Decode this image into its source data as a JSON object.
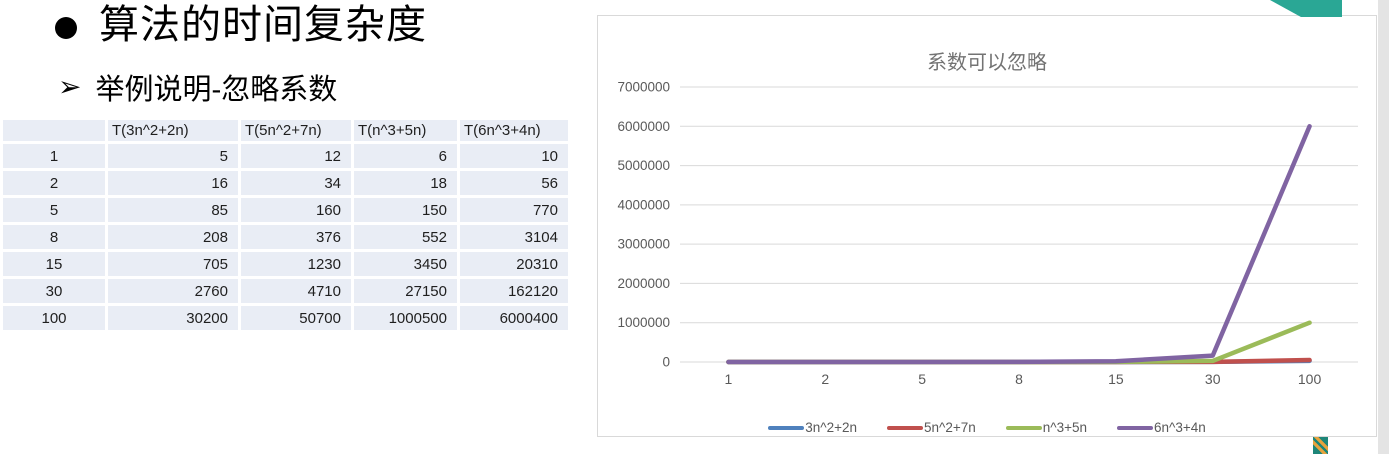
{
  "slide": {
    "bullet_icon": "●",
    "title": "算法的时间复杂度",
    "arrow_icon": "➢",
    "subtitle": "举例说明-忽略系数"
  },
  "table": {
    "headers": [
      "",
      "T(3n^2+2n)",
      "T(5n^2+7n)",
      "T(n^3+5n)",
      "T(6n^3+4n)"
    ],
    "rows": [
      [
        "1",
        "5",
        "12",
        "6",
        "10"
      ],
      [
        "2",
        "16",
        "34",
        "18",
        "56"
      ],
      [
        "5",
        "85",
        "160",
        "150",
        "770"
      ],
      [
        "8",
        "208",
        "376",
        "552",
        "3104"
      ],
      [
        "15",
        "705",
        "1230",
        "3450",
        "20310"
      ],
      [
        "30",
        "2760",
        "4710",
        "27150",
        "162120"
      ],
      [
        "100",
        "30200",
        "50700",
        "1000500",
        "6000400"
      ]
    ]
  },
  "chart_data": {
    "type": "line",
    "title": "系数可以忽略",
    "categories": [
      "1",
      "2",
      "5",
      "8",
      "15",
      "30",
      "100"
    ],
    "series": [
      {
        "name": "3n^2+2n",
        "color": "#4F81BD",
        "values": [
          5,
          16,
          85,
          208,
          705,
          2760,
          30200
        ]
      },
      {
        "name": "5n^2+7n",
        "color": "#C0504D",
        "values": [
          12,
          34,
          160,
          376,
          1230,
          4710,
          50700
        ]
      },
      {
        "name": "n^3+5n",
        "color": "#9BBB59",
        "values": [
          6,
          18,
          150,
          552,
          3450,
          27150,
          1000500
        ]
      },
      {
        "name": "6n^3+4n",
        "color": "#8064A2",
        "values": [
          10,
          56,
          770,
          3104,
          20310,
          162120,
          6000400
        ]
      }
    ],
    "ylim": [
      0,
      7000000
    ],
    "ytick_step": 1000000,
    "yticks": [
      "0",
      "1000000",
      "2000000",
      "3000000",
      "4000000",
      "5000000",
      "6000000",
      "7000000"
    ],
    "grid": true,
    "legend_position": "bottom",
    "gridline_color": "#D9D9D9",
    "tick_label_color": "#595959",
    "title_color": "#737373"
  },
  "decor": {
    "corner_color": "#2AA795",
    "logo_bg": "#1E8679",
    "logo_slash": "#E8A33D"
  }
}
